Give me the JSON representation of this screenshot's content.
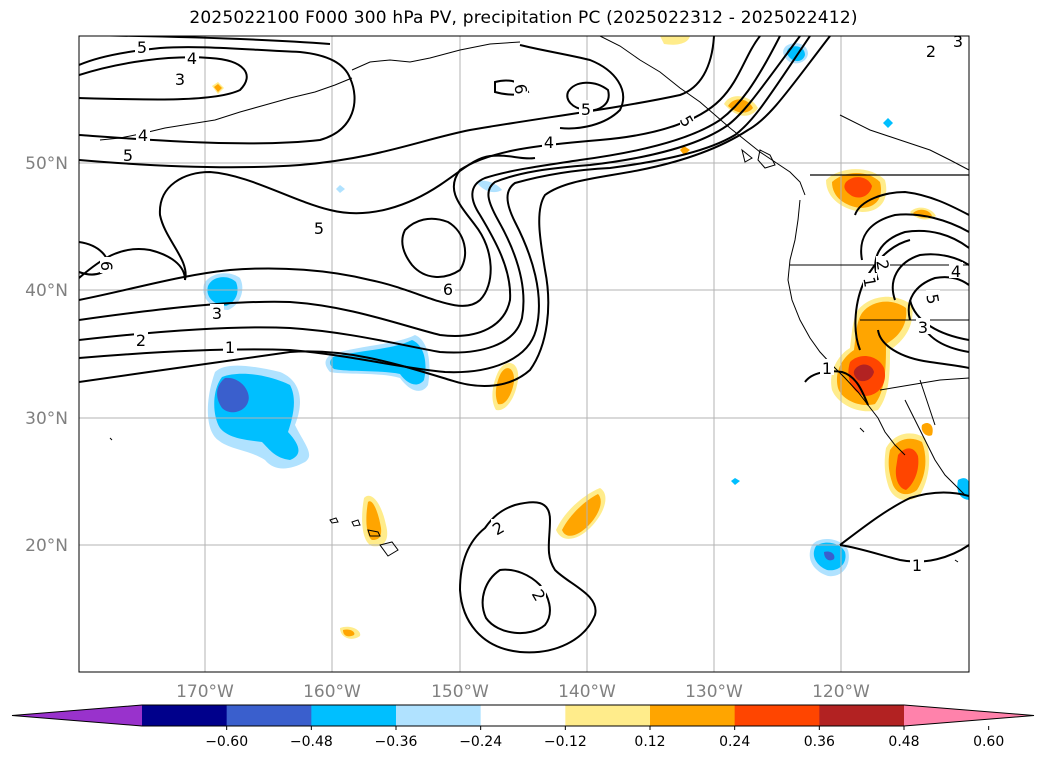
{
  "title": "2025022100 F000 300 hPa PV, precipitation PC (2025022312 - 2025022412)",
  "lat_labels": [
    "50°N",
    "40°N",
    "30°N",
    "20°N"
  ],
  "lon_labels": [
    "170°W",
    "160°W",
    "150°W",
    "140°W",
    "130°W",
    "120°W"
  ],
  "contour_labels": [
    "5",
    "4",
    "3",
    "4",
    "5",
    "6",
    "5",
    "3",
    "2",
    "1",
    "5",
    "4",
    "6",
    "6",
    "5",
    "2",
    "1",
    "2",
    "1",
    "2",
    "1",
    "2",
    "3",
    "4",
    "5",
    "3"
  ],
  "colorbar": {
    "ticks": [
      "−0.60",
      "−0.48",
      "−0.36",
      "−0.24",
      "−0.12",
      "0.12",
      "0.24",
      "0.36",
      "0.48",
      "0.60"
    ],
    "colors": [
      "#9932cc",
      "#00008b",
      "#3a5fcd",
      "#00bfff",
      "#b0e2ff",
      "#ffffff",
      "#ffec8b",
      "#ffa500",
      "#ff4500",
      "#b22222",
      "#ff82ab"
    ]
  }
}
